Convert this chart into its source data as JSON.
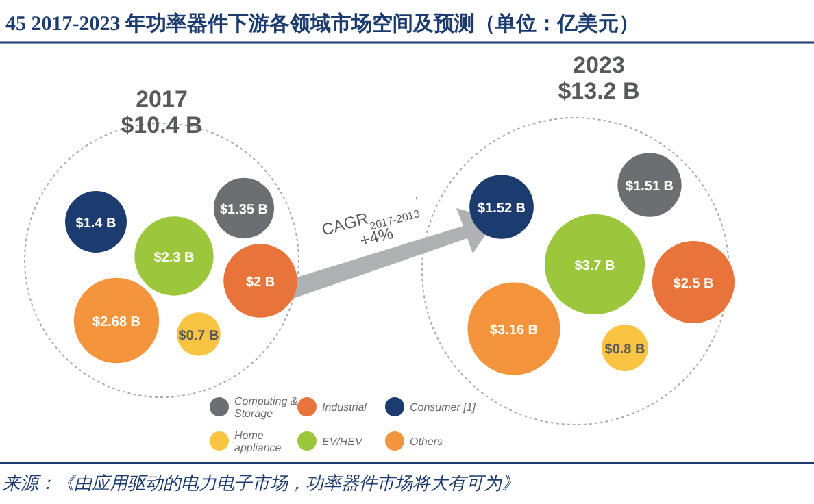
{
  "chart_data": {
    "type": "other",
    "title": "45 2017-2023 年功率器件下游各领域市场空间及预测（单位：亿美元）",
    "categories": [
      "2017",
      "2023"
    ],
    "series": [
      {
        "name": "Computing & Storage",
        "color": "#6d6e71",
        "values": [
          1.35,
          1.51
        ],
        "value_labels": [
          "$1.35 B",
          "$1.51 B"
        ]
      },
      {
        "name": "Industrial",
        "color": "#e8743b",
        "values": [
          2,
          2.5
        ],
        "value_labels": [
          "$2 B",
          "$2.5 B"
        ]
      },
      {
        "name": "Consumer [1]",
        "color": "#1c3b6e",
        "values": [
          1.4,
          1.52
        ],
        "value_labels": [
          "$1.4 B",
          "$1.52 B"
        ]
      },
      {
        "name": "Home appliance",
        "color": "#f9c441",
        "values": [
          0.7,
          0.8
        ],
        "value_labels": [
          "$0.7 B",
          "$0.8 B"
        ]
      },
      {
        "name": "EV/HEV",
        "color": "#9cc63c",
        "values": [
          2.3,
          3.7
        ],
        "value_labels": [
          "$2.3 B",
          "$3.7 B"
        ]
      },
      {
        "name": "Others",
        "color": "#f4943c",
        "values": [
          2.68,
          3.16
        ],
        "value_labels": [
          "$2.68 B",
          "$3.16 B"
        ]
      }
    ],
    "totals": [
      "$10.4 B",
      "$13.2 B"
    ],
    "legend": "bottom",
    "annotations": [
      "CAGR$_{2017-2013}$$^{'}$",
      "+4%",
      "来源：《由应用驱动的电力电子市场，功率器件市场将大有可为》"
    ]
  }
}
